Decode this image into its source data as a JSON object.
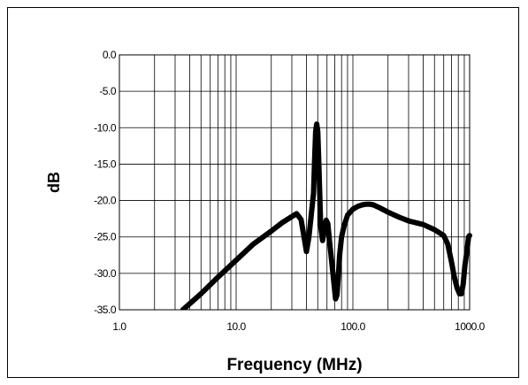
{
  "chart_data": {
    "type": "line",
    "title": "",
    "xlabel": "Frequency (MHz)",
    "ylabel": "dB",
    "x_scale": "log",
    "xlim": [
      1.0,
      1000.0
    ],
    "ylim": [
      -35.0,
      0.0
    ],
    "x_ticks": [
      "1.0",
      "10.0",
      "100.0",
      "1000.0"
    ],
    "y_ticks": [
      "0.0",
      "-5.0",
      "-10.0",
      "-15.0",
      "-20.0",
      "-25.0",
      "-30.0",
      "-35.0"
    ],
    "grid": true,
    "legend": "none",
    "line_color": "#000000",
    "series": [
      {
        "x": [
          3.5,
          5,
          7,
          10,
          14,
          20,
          25,
          30,
          33,
          36,
          38,
          40,
          42,
          44,
          46,
          47,
          48,
          49,
          50,
          51,
          52,
          53,
          55,
          57,
          59,
          61,
          63,
          65,
          67,
          69,
          71,
          73,
          75,
          77,
          80,
          84,
          90,
          100,
          110,
          120,
          130,
          140,
          150,
          170,
          200,
          250,
          300,
          400,
          500,
          600,
          650,
          700,
          740,
          780,
          820,
          850,
          880,
          910,
          950,
          980,
          1000
        ],
        "y": [
          -35.0,
          -32.8,
          -30.5,
          -28.2,
          -26.0,
          -24.2,
          -23.0,
          -22.2,
          -21.8,
          -22.6,
          -24.8,
          -27.0,
          -25.0,
          -22.0,
          -19.0,
          -14.5,
          -10.5,
          -9.5,
          -10.5,
          -14.5,
          -19.0,
          -23.5,
          -25.5,
          -24.0,
          -22.7,
          -23.2,
          -25.5,
          -27.5,
          -29.5,
          -31.5,
          -33.5,
          -33.0,
          -30.5,
          -27.5,
          -25.0,
          -23.5,
          -22.0,
          -21.2,
          -20.8,
          -20.6,
          -20.5,
          -20.5,
          -20.6,
          -21.0,
          -21.6,
          -22.3,
          -22.8,
          -23.3,
          -24.0,
          -24.8,
          -26.0,
          -28.5,
          -30.5,
          -32.0,
          -32.8,
          -32.8,
          -31.5,
          -29.0,
          -26.8,
          -25.0,
          -24.8
        ]
      }
    ]
  }
}
